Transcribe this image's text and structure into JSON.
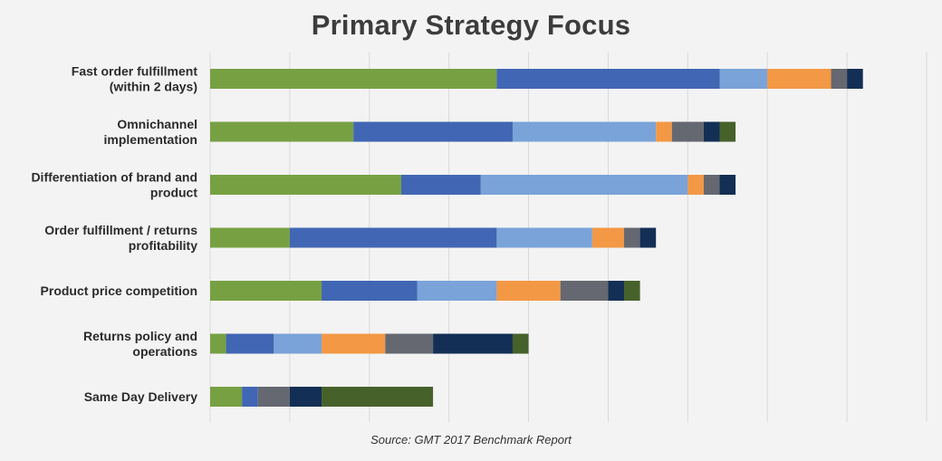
{
  "chart_data": {
    "type": "bar",
    "orientation": "horizontal",
    "stacked": true,
    "title": "Primary Strategy Focus",
    "source": "Source: GMT 2017 Benchmark Report",
    "categories": [
      [
        "Fast order fulfillment",
        "(within 2 days)"
      ],
      [
        "Omnichannel",
        "implementation"
      ],
      [
        "Differentiation of brand and",
        "product"
      ],
      [
        "Order fulfillment / returns",
        "profitability"
      ],
      [
        "Product price competition"
      ],
      [
        "Returns policy and",
        "operations"
      ],
      [
        "Same Day Delivery"
      ]
    ],
    "series": [
      {
        "color": "#77a043",
        "values": [
          36,
          18,
          24,
          10,
          14,
          2,
          4
        ]
      },
      {
        "color": "#4166b3",
        "values": [
          28,
          20,
          10,
          26,
          12,
          6,
          2
        ]
      },
      {
        "color": "#79a3d9",
        "values": [
          6,
          18,
          26,
          12,
          10,
          6,
          0
        ]
      },
      {
        "color": "#f39845",
        "values": [
          8,
          2,
          2,
          4,
          8,
          8,
          0
        ]
      },
      {
        "color": "#656870",
        "values": [
          2,
          4,
          2,
          2,
          6,
          6,
          4
        ]
      },
      {
        "color": "#142f55",
        "values": [
          2,
          2,
          2,
          2,
          2,
          10,
          4
        ]
      },
      {
        "color": "#47612b",
        "values": [
          0,
          2,
          0,
          0,
          2,
          2,
          14
        ]
      }
    ],
    "xlim": [
      0,
      90
    ],
    "x_grid_step": 10,
    "grid": true,
    "legend": "none"
  }
}
